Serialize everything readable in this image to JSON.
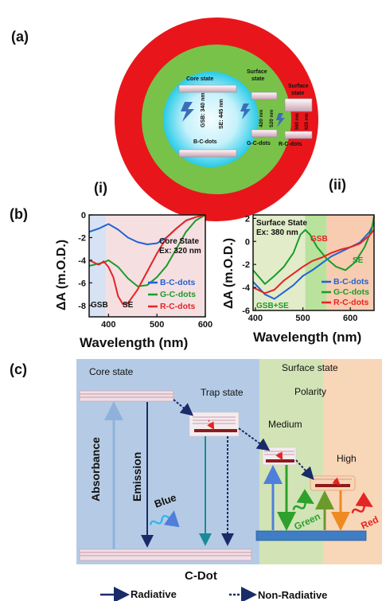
{
  "panel_labels": {
    "a": "(a)",
    "b": "(b)",
    "c": "(c)",
    "i": "(i)",
    "ii": "(ii)"
  },
  "panel_a": {
    "core_state": "Core state",
    "surface_state_green": [
      "Surface",
      "state"
    ],
    "surface_state_red": [
      "Surface",
      "state"
    ],
    "gsb": "GSB: 340 nm",
    "se": "SE: 445 nm",
    "b_c_dots": "B-C-dots",
    "g_c_dots": "G-C-dots",
    "r_c_dots": "R-C-dots",
    "green_bands": [
      "420 nm",
      "520 nm"
    ],
    "red_bands": [
      "560 nm",
      "625 nm"
    ],
    "colors": {
      "outer": "#e8161b",
      "middle": "#78c24a",
      "inner": "#bff3fb",
      "core": "#36d3ee"
    }
  },
  "chart_data": [
    {
      "type": "line",
      "title": "Core State",
      "subtitle": "Ex: 320 nm",
      "xlabel": "Wavelength (nm)",
      "ylabel": "ΔA (m.O.D.)",
      "xlim": [
        360,
        600
      ],
      "ylim": [
        -9,
        0
      ],
      "xticks": [
        400,
        500,
        600
      ],
      "yticks": [
        0,
        -2,
        -4,
        -6,
        -8
      ],
      "regions": [
        {
          "label": "GSB",
          "range": [
            360,
            395
          ],
          "color": "#d7e2f4"
        },
        {
          "label": "SE",
          "range": [
            395,
            600
          ],
          "color": "#f5dfe1"
        }
      ],
      "series": [
        {
          "name": "B-C-dots",
          "color": "#1f64d4",
          "x": [
            360,
            380,
            400,
            420,
            440,
            460,
            480,
            500,
            520,
            540,
            560,
            580,
            600
          ],
          "values": [
            -1.5,
            -1.2,
            -0.8,
            -1.3,
            -2.0,
            -2.4,
            -2.6,
            -2.5,
            -2.0,
            -1.2,
            -0.5,
            -0.2,
            0.0
          ]
        },
        {
          "name": "G-C-dots",
          "color": "#1c9a2c",
          "x": [
            360,
            380,
            390,
            400,
            420,
            440,
            460,
            480,
            500,
            520,
            540,
            560,
            580,
            600
          ],
          "values": [
            -4.5,
            -4.3,
            -4.2,
            -4.0,
            -4.6,
            -5.6,
            -6.3,
            -6.2,
            -5.5,
            -4.5,
            -3.0,
            -1.5,
            -0.5,
            0.0
          ]
        },
        {
          "name": "R-C-dots",
          "color": "#e52424",
          "x": [
            360,
            380,
            390,
            400,
            410,
            420,
            430,
            440,
            460,
            480,
            500,
            520,
            540,
            560,
            580,
            600
          ],
          "values": [
            -4.0,
            -4.4,
            -4.1,
            -4.6,
            -5.5,
            -7.2,
            -7.9,
            -7.8,
            -6.6,
            -5.0,
            -3.4,
            -2.0,
            -1.2,
            -0.5,
            -0.2,
            0.0
          ]
        }
      ]
    },
    {
      "type": "line",
      "title": "Surface State",
      "subtitle": "Ex: 380 nm",
      "xlabel": "Wavelength (nm)",
      "ylabel": "ΔA (m.O.D.)",
      "xlim": [
        395,
        650
      ],
      "ylim": [
        -6,
        2.3
      ],
      "xticks": [
        400,
        500,
        600
      ],
      "yticks": [
        2,
        0,
        -2,
        -4,
        -6
      ],
      "regions": [
        {
          "label": "GSB+SE",
          "range": [
            395,
            505
          ],
          "color": "#e2ecc9"
        },
        {
          "label": "",
          "range": [
            505,
            550
          ],
          "color": "#b9e29c"
        },
        {
          "label": "",
          "range": [
            550,
            650
          ],
          "color": "#f7ccb0"
        }
      ],
      "annotations": [
        "GSB",
        "SE"
      ],
      "series": [
        {
          "name": "B-C-dots",
          "color": "#1f64d4",
          "x": [
            395,
            420,
            440,
            460,
            480,
            500,
            520,
            540,
            560,
            580,
            600,
            620,
            640,
            650
          ],
          "values": [
            -3.5,
            -4.6,
            -5.0,
            -4.4,
            -3.8,
            -3.0,
            -2.5,
            -1.9,
            -1.3,
            -0.9,
            -0.5,
            -0.1,
            0.8,
            1.6
          ]
        },
        {
          "name": "G-C-dots",
          "color": "#1c9a2c",
          "x": [
            395,
            420,
            440,
            460,
            480,
            495,
            505,
            515,
            530,
            550,
            570,
            590,
            610,
            630,
            645,
            650
          ],
          "values": [
            -2.5,
            -3.7,
            -3.0,
            -2.2,
            -1.0,
            0.6,
            1.0,
            0.6,
            -0.5,
            -1.5,
            -2.2,
            -2.5,
            -1.8,
            -0.5,
            1.0,
            2.2
          ]
        },
        {
          "name": "R-C-dots",
          "color": "#e52424",
          "x": [
            395,
            420,
            440,
            460,
            480,
            500,
            520,
            540,
            560,
            580,
            600,
            620,
            640,
            650
          ],
          "values": [
            -4.0,
            -4.5,
            -4.2,
            -3.4,
            -2.8,
            -2.2,
            -1.7,
            -1.4,
            -1.0,
            -0.7,
            -0.5,
            -0.2,
            0.5,
            1.0
          ]
        }
      ]
    }
  ],
  "panel_c": {
    "core_state": "Core state",
    "surface_state": "Surface state",
    "polarity": "Polarity",
    "trap_state": "Trap state",
    "medium": "Medium",
    "high": "High",
    "absorbance": "Absorbance",
    "emission": "Emission",
    "blue": "Blue",
    "green": "Green",
    "red": "Red",
    "c_dot": "C-Dot",
    "radiative": "Radiative",
    "non_radiative": "Non-Radiative",
    "colors": {
      "core_bg": "#b5cbe5",
      "medium_bg": "#d2e4b6",
      "high_bg": "#f8d6b8"
    }
  }
}
